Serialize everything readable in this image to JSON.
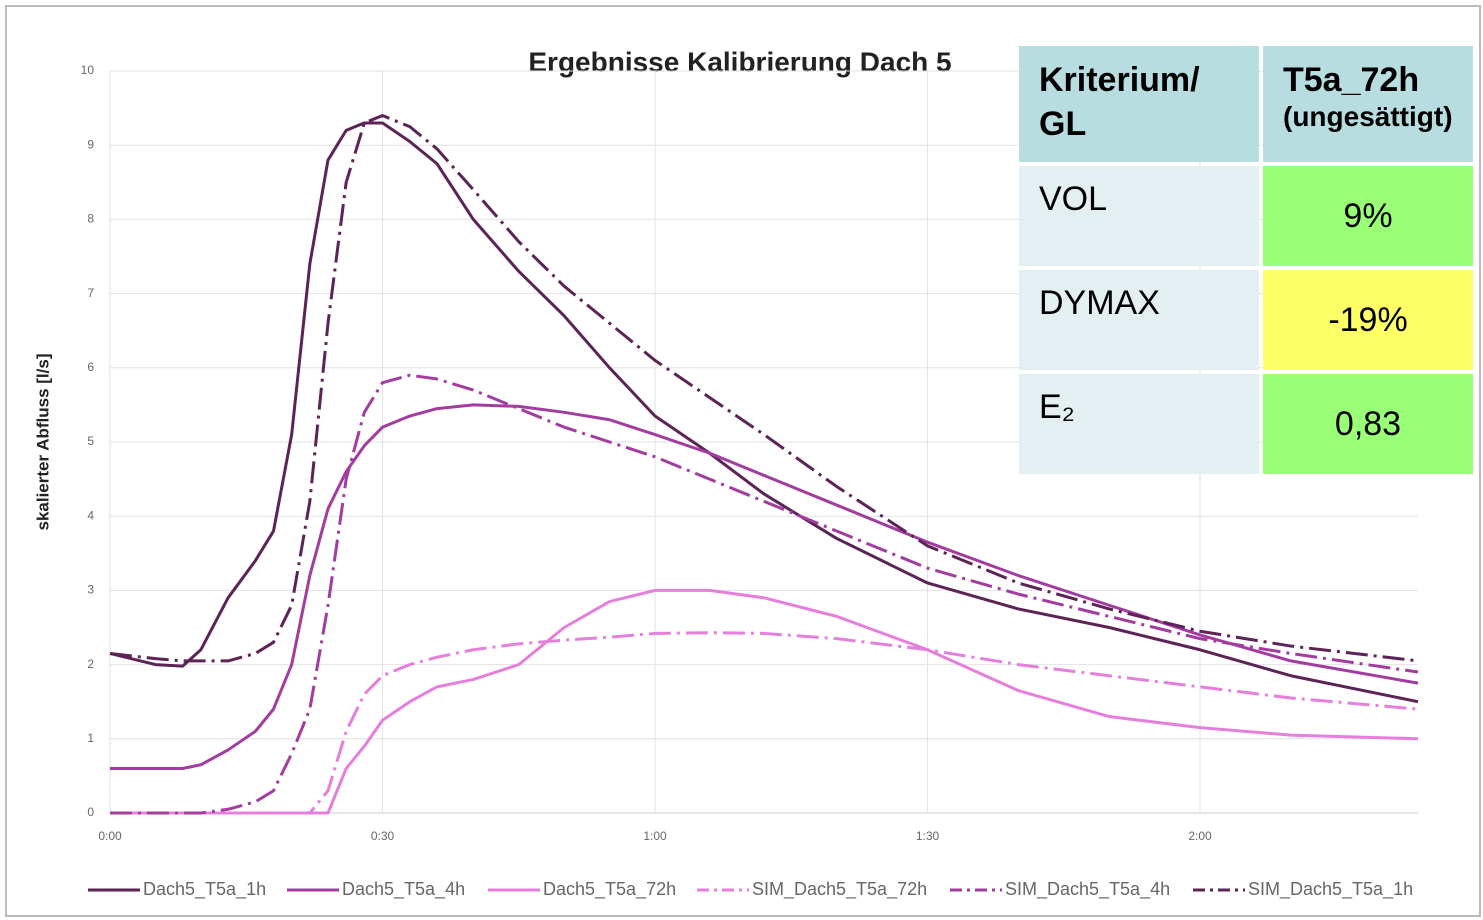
{
  "chart_data": {
    "type": "line",
    "title": "Ergebnisse Kalibrierung Dach 5",
    "y_label": "skalierter Abfluss [l/s]",
    "x": [
      0,
      5,
      8,
      10,
      13,
      16,
      18,
      20,
      22,
      24,
      26,
      28,
      30,
      33,
      36,
      40,
      45,
      50,
      55,
      60,
      66,
      72,
      80,
      90,
      100,
      110,
      120,
      130,
      144
    ],
    "xlim": [
      0,
      144
    ],
    "xticks": [
      {
        "value": 0,
        "label": "0:00"
      },
      {
        "value": 30,
        "label": "0:30"
      },
      {
        "value": 60,
        "label": "1:00"
      },
      {
        "value": 90,
        "label": "1:30"
      },
      {
        "value": 120,
        "label": "2:00"
      }
    ],
    "ylim": [
      0,
      10
    ],
    "yticks": [
      0,
      1,
      2,
      3,
      4,
      5,
      6,
      7,
      8,
      9,
      10
    ],
    "grid": true,
    "legend": "bottom",
    "series": [
      {
        "name": "Dach5_T5a_1h",
        "color": "#5c2356",
        "line_style": "solid",
        "values": [
          2.15,
          2.0,
          1.98,
          2.2,
          2.9,
          3.4,
          3.8,
          5.1,
          7.4,
          8.8,
          9.2,
          9.3,
          9.3,
          9.05,
          8.75,
          8.0,
          7.3,
          6.7,
          6.0,
          5.35,
          4.85,
          4.3,
          3.7,
          3.1,
          2.75,
          2.5,
          2.2,
          1.85,
          1.5
        ]
      },
      {
        "name": "Dach5_T5a_4h",
        "color": "#a23d9f",
        "line_style": "solid",
        "values": [
          0.6,
          0.6,
          0.6,
          0.65,
          0.85,
          1.1,
          1.4,
          2.0,
          3.2,
          4.1,
          4.6,
          4.95,
          5.2,
          5.35,
          5.45,
          5.5,
          5.48,
          5.4,
          5.3,
          5.1,
          4.85,
          4.55,
          4.15,
          3.65,
          3.2,
          2.8,
          2.4,
          2.05,
          1.75
        ]
      },
      {
        "name": "Dach5_T5a_72h",
        "color": "#e47fdc",
        "line_style": "solid",
        "values": [
          0,
          0,
          0,
          0,
          0,
          0,
          0,
          0,
          0,
          0,
          0.6,
          0.9,
          1.25,
          1.5,
          1.7,
          1.8,
          2.0,
          2.5,
          2.85,
          3.0,
          3.0,
          2.9,
          2.65,
          2.2,
          1.65,
          1.3,
          1.15,
          1.05,
          1.0
        ]
      },
      {
        "name": "SIM_Dach5_T5a_72h",
        "color": "#e47fdc",
        "line_style": "dash-dot",
        "values": [
          0,
          0,
          0,
          0,
          0,
          0,
          0,
          0,
          0,
          0.3,
          1.1,
          1.6,
          1.85,
          2.0,
          2.1,
          2.2,
          2.28,
          2.33,
          2.37,
          2.42,
          2.43,
          2.42,
          2.35,
          2.2,
          2.0,
          1.85,
          1.7,
          1.55,
          1.4
        ]
      },
      {
        "name": "SIM_Dach5_T5a_4h",
        "color": "#a23d9f",
        "line_style": "dash-dot",
        "values": [
          0,
          0,
          0,
          0,
          0.05,
          0.15,
          0.3,
          0.8,
          1.4,
          2.8,
          4.5,
          5.4,
          5.8,
          5.9,
          5.85,
          5.7,
          5.45,
          5.2,
          5.0,
          4.8,
          4.5,
          4.2,
          3.8,
          3.3,
          2.95,
          2.65,
          2.35,
          2.15,
          1.9
        ]
      },
      {
        "name": "SIM_Dach5_T5a_1h",
        "color": "#5c2356",
        "line_style": "dash-dot",
        "values": [
          2.15,
          2.08,
          2.05,
          2.05,
          2.05,
          2.15,
          2.3,
          2.8,
          4.2,
          6.6,
          8.5,
          9.3,
          9.4,
          9.25,
          8.95,
          8.4,
          7.7,
          7.1,
          6.6,
          6.1,
          5.6,
          5.1,
          4.4,
          3.6,
          3.1,
          2.75,
          2.45,
          2.25,
          2.05
        ]
      }
    ]
  },
  "table": {
    "header": {
      "criterion": "Kriterium/ GL",
      "column": "T5a_72h",
      "column_note": "(ungesättigt)"
    },
    "rows": [
      {
        "label": "VOL",
        "value": "9%",
        "color": "#99ff77"
      },
      {
        "label": "DYMAX",
        "value": "-19%",
        "color": "#ffff66"
      },
      {
        "label": "E₂",
        "value": "0,83",
        "color": "#99ff77"
      }
    ]
  }
}
